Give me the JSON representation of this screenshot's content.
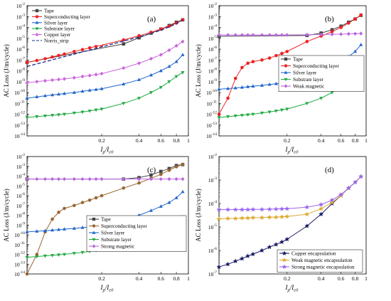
{
  "chart_data": [
    {
      "type": "line",
      "panel_label": "(a)",
      "xscale": "log",
      "yscale": "log",
      "xlim": [
        0.05,
        1
      ],
      "ylim": [
        1e-14,
        0.01
      ],
      "xticks": [
        "0.2",
        "0.4",
        "0.6",
        "0.8",
        "1"
      ],
      "ylabel_text": "AC Loss (J/m/cycle)",
      "xlabel_text": "I",
      "xlabel_sub1": "p",
      "xlabel_mid": "/I",
      "xlabel_sub2": "c0",
      "legend_position": "top-left",
      "grid": false,
      "series": [
        {
          "name": "Tape",
          "color": "#444444",
          "marker": "square",
          "x": [
            0.05,
            0.3,
            0.4,
            0.5,
            0.6,
            0.7,
            0.8,
            0.9
          ],
          "y": [
            6e-08,
            3e-06,
            1.1e-05,
            3e-05,
            7e-05,
            0.00015,
            0.0003,
            0.0005
          ]
        },
        {
          "name": "Superconducting layer",
          "color": "#ee2222",
          "marker": "circle",
          "x": [
            0.05,
            0.06,
            0.07,
            0.08,
            0.09,
            0.1,
            0.12,
            0.14,
            0.16,
            0.18,
            0.2,
            0.3,
            0.4,
            0.5,
            0.6,
            0.7,
            0.8,
            0.9
          ],
          "y": [
            6e-08,
            9e-08,
            1.3e-07,
            1.9e-07,
            2.6e-07,
            3.5e-07,
            6e-07,
            9e-07,
            1.3e-06,
            1.8e-06,
            2.3e-06,
            7e-06,
            1.7e-05,
            3.5e-05,
            7e-05,
            0.00013,
            0.00025,
            0.0005
          ]
        },
        {
          "name": "Silver layer",
          "color": "#2266cc",
          "marker": "triangle-up",
          "x": [
            0.05,
            0.06,
            0.07,
            0.08,
            0.09,
            0.1,
            0.12,
            0.14,
            0.16,
            0.18,
            0.2,
            0.3,
            0.4,
            0.5,
            0.6,
            0.7,
            0.8,
            0.9
          ],
          "y": [
            3e-11,
            4e-11,
            5e-11,
            6e-11,
            7e-11,
            8e-11,
            1e-10,
            1.3e-10,
            1.6e-10,
            1.9e-10,
            2.2e-10,
            6e-10,
            1.5e-09,
            4e-09,
            1e-08,
            2.5e-08,
            7e-08,
            3e-07
          ]
        },
        {
          "name": "Substrate layer",
          "color": "#22aa44",
          "marker": "triangle-down",
          "x": [
            0.05,
            0.06,
            0.07,
            0.08,
            0.09,
            0.1,
            0.12,
            0.14,
            0.16,
            0.18,
            0.2,
            0.3,
            0.4,
            0.5,
            0.6,
            0.7,
            0.8,
            0.9
          ],
          "y": [
            5e-13,
            6e-13,
            7e-13,
            8e-13,
            9e-13,
            1e-12,
            1.3e-12,
            1.6e-12,
            2e-12,
            2.5e-12,
            3e-12,
            1e-11,
            3e-11,
            1e-10,
            3e-10,
            1e-09,
            3e-09,
            7e-09
          ]
        },
        {
          "name": "Copper layer",
          "color": "#cc66dd",
          "marker": "diamond",
          "x": [
            0.05,
            0.06,
            0.07,
            0.08,
            0.09,
            0.1,
            0.12,
            0.14,
            0.16,
            0.18,
            0.2,
            0.3,
            0.4,
            0.5,
            0.6,
            0.7,
            0.8,
            0.9
          ],
          "y": [
            8e-10,
            1e-09,
            1.2e-09,
            1.4e-09,
            1.6e-09,
            1.8e-09,
            2.3e-09,
            3e-09,
            3.7e-09,
            4.5e-09,
            5.5e-09,
            1.8e-08,
            5e-08,
            1.3e-07,
            3e-07,
            8e-07,
            2e-06,
            5e-06
          ]
        },
        {
          "name": "Norris_strip",
          "color": "#1a2c8c",
          "marker": "none",
          "dash": true,
          "x": [
            0.05,
            0.1,
            0.2,
            0.3,
            0.4,
            0.5,
            0.6,
            0.7,
            0.8,
            0.9
          ],
          "y": [
            2.5e-08,
            2e-07,
            1.6e-06,
            5.5e-06,
            1.3e-05,
            2.8e-05,
            5.5e-05,
            0.00011,
            0.00022,
            0.0005
          ]
        }
      ]
    },
    {
      "type": "line",
      "panel_label": "(b)",
      "xscale": "log",
      "yscale": "log",
      "xlim": [
        0.05,
        1
      ],
      "ylim": [
        1e-14,
        0.01
      ],
      "xticks": [
        "0.2",
        "0.4",
        "0.6",
        "0.8",
        "1"
      ],
      "ylabel_text": "AC Loss (J/m/cycle)",
      "xlabel_text": "I",
      "xlabel_sub1": "p",
      "xlabel_mid": "/I",
      "xlabel_sub2": "c0",
      "legend_position": "lower-right",
      "grid": false,
      "series": [
        {
          "name": "Tape",
          "color": "#444444",
          "marker": "square",
          "x": [
            0.05,
            0.3,
            0.4,
            0.5,
            0.6,
            0.7,
            0.8,
            0.9
          ],
          "y": [
            1.5e-05,
            1.8e-05,
            3e-05,
            6e-05,
            0.00013,
            0.0003,
            0.0006,
            0.0013
          ]
        },
        {
          "name": "Superconducting layer",
          "color": "#ee2222",
          "marker": "circle",
          "x": [
            0.05,
            0.06,
            0.07,
            0.08,
            0.09,
            0.1,
            0.12,
            0.14,
            0.16,
            0.18,
            0.2,
            0.3,
            0.4,
            0.5,
            0.6,
            0.7,
            0.8,
            0.9
          ],
          "y": [
            1e-12,
            3e-11,
            2e-09,
            2e-08,
            5e-08,
            7e-08,
            1e-07,
            1.5e-07,
            2.5e-07,
            4e-07,
            6e-07,
            5e-06,
            1.6e-05,
            4e-05,
            0.0001,
            0.00025,
            0.0006,
            0.0014
          ]
        },
        {
          "name": "Silver layer",
          "color": "#2266cc",
          "marker": "triangle-up",
          "x": [
            0.05,
            0.06,
            0.07,
            0.08,
            0.09,
            0.1,
            0.12,
            0.14,
            0.16,
            0.18,
            0.2,
            0.3,
            0.4,
            0.5,
            0.6,
            0.7,
            0.8,
            0.9
          ],
          "y": [
            2e-10,
            2.3e-10,
            2.6e-10,
            3e-10,
            3.4e-10,
            3.8e-10,
            4.5e-10,
            5.5e-10,
            6.5e-10,
            7.5e-10,
            9e-10,
            3e-09,
            1e-08,
            3e-08,
            8e-08,
            2e-07,
            6e-07,
            2.5e-06
          ]
        },
        {
          "name": "Substrate layer",
          "color": "#22aa44",
          "marker": "triangle-down",
          "x": [
            0.05,
            0.06,
            0.07,
            0.08,
            0.09,
            0.1,
            0.12,
            0.14,
            0.16,
            0.18,
            0.2,
            0.3,
            0.4,
            0.5,
            0.6,
            0.7,
            0.8,
            0.9
          ],
          "y": [
            5e-13,
            6e-13,
            7e-13,
            8e-13,
            9e-13,
            1e-12,
            1.3e-12,
            1.6e-12,
            2e-12,
            2.5e-12,
            3e-12,
            1e-11,
            3e-11,
            1e-10,
            3e-10,
            1e-09,
            3e-09,
            7e-09
          ]
        },
        {
          "name": "Weak magnetic",
          "color": "#bb66dd",
          "marker": "diamond",
          "x": [
            0.05,
            0.06,
            0.07,
            0.08,
            0.09,
            0.1,
            0.12,
            0.14,
            0.16,
            0.18,
            0.2,
            0.3,
            0.4,
            0.5,
            0.6,
            0.7,
            0.8,
            0.9
          ],
          "y": [
            2e-05,
            2e-05,
            2e-05,
            2e-05,
            2e-05,
            2e-05,
            2e-05,
            2e-05,
            2e-05,
            2e-05,
            2e-05,
            2.1e-05,
            2.2e-05,
            2.3e-05,
            2.4e-05,
            2.5e-05,
            2.6e-05,
            2.7e-05
          ]
        }
      ]
    },
    {
      "type": "line",
      "panel_label": "(c)",
      "xscale": "log",
      "yscale": "log",
      "xlim": [
        0.05,
        1
      ],
      "ylim": [
        1e-14,
        0.01
      ],
      "xticks": [
        "0.2",
        "0.4",
        "0.6",
        "0.8",
        "1"
      ],
      "ylabel_text": "AC Loss (J/m/cycle)",
      "xlabel_text": "I",
      "xlabel_sub1": "p",
      "xlabel_mid": "/I",
      "xlabel_sub2": "c0",
      "legend_position": "lower-right",
      "grid": false,
      "series": [
        {
          "name": "Tape",
          "color": "#444444",
          "marker": "square",
          "x": [
            0.05,
            0.3,
            0.4,
            0.5,
            0.6,
            0.7,
            0.8,
            0.9
          ],
          "y": [
            5e-05,
            5e-05,
            7e-05,
            0.00013,
            0.0003,
            0.0006,
            0.0012,
            0.0015
          ]
        },
        {
          "name": "Superconducting layer",
          "color": "#996633",
          "marker": "circle",
          "x": [
            0.05,
            0.06,
            0.07,
            0.08,
            0.09,
            0.1,
            0.12,
            0.14,
            0.16,
            0.18,
            0.2,
            0.3,
            0.4,
            0.5,
            0.6,
            0.7,
            0.8,
            0.9
          ],
          "y": [
            1e-14,
            1e-12,
            2e-10,
            4e-09,
            2e-08,
            5e-08,
            1e-07,
            2e-07,
            3.5e-07,
            6e-07,
            1e-06,
            6e-06,
            2e-05,
            6e-05,
            0.00015,
            0.0004,
            0.0009,
            0.0016
          ]
        },
        {
          "name": "Silver layer",
          "color": "#2266cc",
          "marker": "triangle-up",
          "x": [
            0.05,
            0.06,
            0.07,
            0.08,
            0.09,
            0.1,
            0.12,
            0.14,
            0.16,
            0.18,
            0.2,
            0.3,
            0.4,
            0.5,
            0.6,
            0.7,
            0.8,
            0.9
          ],
          "y": [
            2e-10,
            2.3e-10,
            2.6e-10,
            3e-10,
            3.4e-10,
            3.8e-10,
            4.5e-10,
            5.5e-10,
            6.5e-10,
            7.5e-10,
            9e-10,
            3e-09,
            1e-08,
            3e-08,
            8e-08,
            2e-07,
            6e-07,
            2.5e-06
          ]
        },
        {
          "name": "Substrate layer",
          "color": "#22aa44",
          "marker": "triangle-down",
          "x": [
            0.05,
            0.06,
            0.07,
            0.08,
            0.09,
            0.1,
            0.12,
            0.14,
            0.16,
            0.18,
            0.2,
            0.3,
            0.4,
            0.5,
            0.6,
            0.7,
            0.8,
            0.9
          ],
          "y": [
            5e-13,
            6e-13,
            7e-13,
            8e-13,
            9e-13,
            1e-12,
            1.3e-12,
            1.6e-12,
            2e-12,
            2.5e-12,
            3e-12,
            1e-11,
            3e-11,
            1e-10,
            3e-10,
            1e-09,
            3e-09,
            7e-09
          ]
        },
        {
          "name": "Strong magnetic",
          "color": "#bb66dd",
          "marker": "diamond",
          "x": [
            0.05,
            0.06,
            0.07,
            0.08,
            0.09,
            0.1,
            0.12,
            0.14,
            0.16,
            0.18,
            0.2,
            0.3,
            0.4,
            0.5,
            0.6,
            0.7,
            0.8,
            0.9
          ],
          "y": [
            5e-05,
            5e-05,
            5e-05,
            5e-05,
            5e-05,
            5e-05,
            5e-05,
            5e-05,
            5e-05,
            5e-05,
            5e-05,
            5e-05,
            5e-05,
            5e-05,
            5e-05,
            5e-05,
            5e-05,
            5e-05
          ]
        }
      ]
    },
    {
      "type": "line",
      "panel_label": "(d)",
      "xscale": "log",
      "yscale": "log",
      "xlim": [
        0.05,
        1
      ],
      "ylim": [
        1e-07,
        0.01
      ],
      "xticks": [
        "0.2",
        "0.4",
        "0.6",
        "0.8",
        "1"
      ],
      "ylabel_text": "AC Loss (J/m/cycle)",
      "xlabel_text": "I",
      "xlabel_sub1": "p",
      "xlabel_mid": "/I",
      "xlabel_sub2": "c0",
      "legend_position": "lower-right",
      "grid": false,
      "series": [
        {
          "name": "Copper encapsulation",
          "color": "#1a1a66",
          "marker": "star",
          "x": [
            0.05,
            0.06,
            0.07,
            0.08,
            0.09,
            0.1,
            0.12,
            0.14,
            0.16,
            0.18,
            0.2,
            0.3,
            0.4,
            0.5,
            0.6,
            0.7,
            0.8,
            0.9
          ],
          "y": [
            2e-07,
            2.6e-07,
            3.5e-07,
            4.5e-07,
            5.8e-07,
            7e-07,
            1e-06,
            1.4e-06,
            1.8e-06,
            2.3e-06,
            3e-06,
            1.1e-05,
            3.5e-05,
            0.0001,
            0.00022,
            0.00045,
            0.0008,
            0.0014
          ]
        },
        {
          "name": "Weak magnetic encapsulation",
          "color": "#ddaa33",
          "marker": "star",
          "x": [
            0.05,
            0.06,
            0.07,
            0.08,
            0.09,
            0.1,
            0.12,
            0.14,
            0.16,
            0.18,
            0.2,
            0.3,
            0.4,
            0.5,
            0.6,
            0.7,
            0.8,
            0.9
          ],
          "y": [
            2.2e-05,
            2.3e-05,
            2.3e-05,
            2.4e-05,
            2.4e-05,
            2.5e-05,
            2.5e-05,
            2.6e-05,
            2.6e-05,
            2.7e-05,
            2.8e-05,
            3.5e-05,
            6e-05,
            0.00011,
            0.00022,
            0.00045,
            0.0008,
            0.0014
          ]
        },
        {
          "name": "Strong magnetic encapsulation",
          "color": "#9966ee",
          "marker": "star",
          "x": [
            0.05,
            0.06,
            0.07,
            0.08,
            0.09,
            0.1,
            0.12,
            0.14,
            0.16,
            0.18,
            0.2,
            0.3,
            0.4,
            0.5,
            0.6,
            0.7,
            0.8,
            0.9
          ],
          "y": [
            5.5e-05,
            5.5e-05,
            5.5e-05,
            5.5e-05,
            5.5e-05,
            5.6e-05,
            5.6e-05,
            5.7e-05,
            5.8e-05,
            5.9e-05,
            6e-05,
            7e-05,
            9e-05,
            0.00014,
            0.00024,
            0.00046,
            0.0008,
            0.0014
          ]
        }
      ]
    }
  ]
}
